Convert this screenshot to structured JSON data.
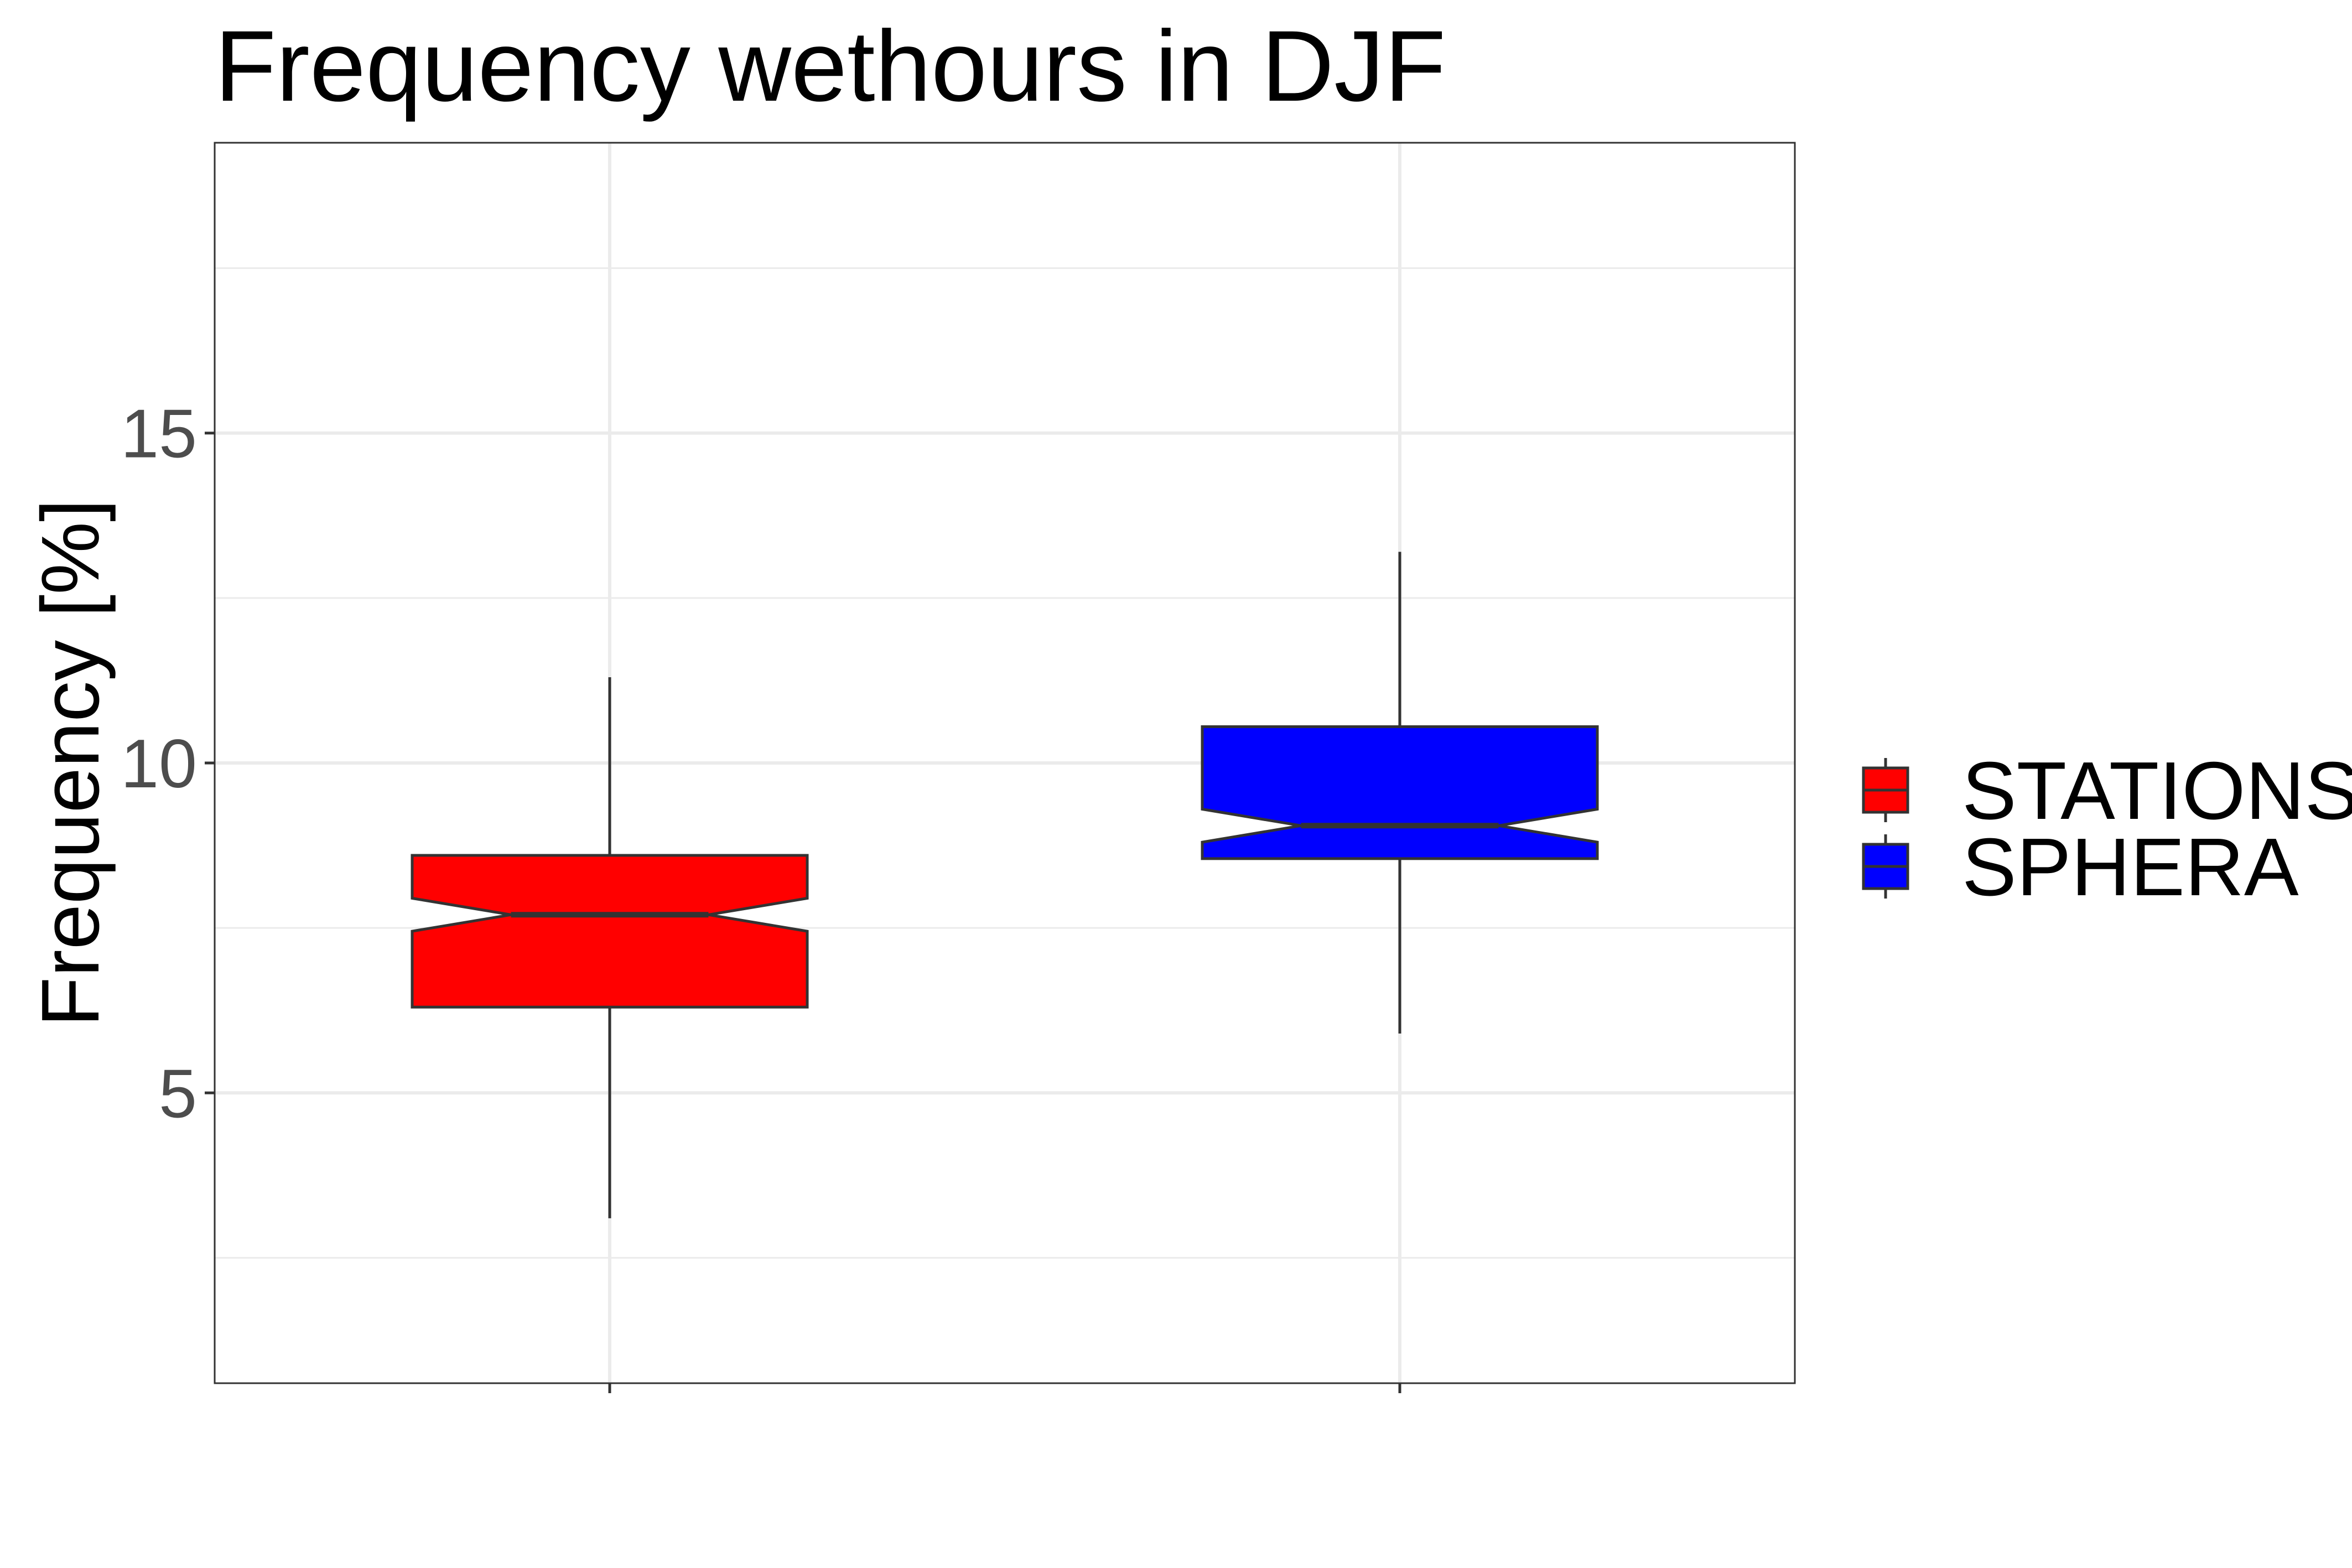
{
  "chart_data": {
    "type": "boxplot",
    "title": "Frequency wethours in DJF",
    "xlabel": "",
    "ylabel": "Frequency [%]",
    "ylim": [
      0.6,
      19.4
    ],
    "yticks": [
      5,
      10,
      15
    ],
    "y_minor_ticks": [
      2.5,
      7.5,
      12.5,
      17.5
    ],
    "grid": true,
    "notched": true,
    "legend_position": "right",
    "series": [
      {
        "name": "STATIONS",
        "color": "#ff0000",
        "whisker_low": 3.1,
        "q1": 6.3,
        "median": 7.7,
        "q3": 8.6,
        "whisker_high": 11.3,
        "notch_low": 7.45,
        "notch_high": 7.95
      },
      {
        "name": "SPHERA",
        "color": "#0000ff",
        "whisker_low": 5.9,
        "q1": 8.55,
        "median": 9.05,
        "q3": 10.55,
        "whisker_high": 13.2,
        "notch_low": 8.8,
        "notch_high": 9.3
      }
    ]
  }
}
